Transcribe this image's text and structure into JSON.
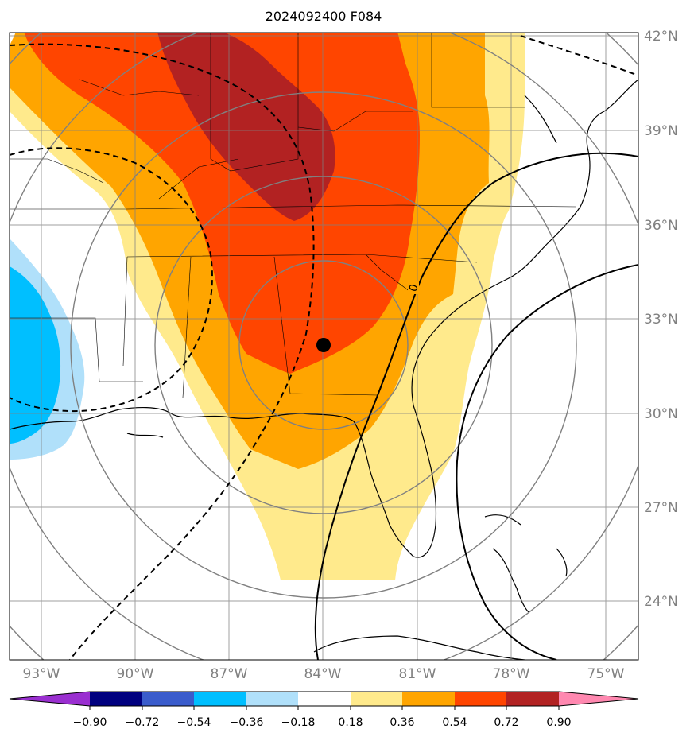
{
  "title": "2024092400 F084",
  "map": {
    "lat_labels": [
      "42°N",
      "39°N",
      "36°N",
      "33°N",
      "30°N",
      "27°N",
      "24°N"
    ],
    "lon_labels": [
      "93°W",
      "90°W",
      "87°W",
      "84°W",
      "81°W",
      "78°W",
      "75°W"
    ],
    "center_marker": {
      "lat": 32.2,
      "lon": -84.0
    },
    "contour_label": "0"
  },
  "colorbar": {
    "labels": [
      "−0.90",
      "−0.72",
      "−0.54",
      "−0.36",
      "−0.18",
      "0.18",
      "0.36",
      "0.54",
      "0.72",
      "0.90"
    ],
    "colors": [
      "#9a2fd0",
      "#00007f",
      "#3a5ccc",
      "#00bfff",
      "#b0e0fa",
      "#ffffff",
      "#ffea8c",
      "#ffa500",
      "#ff4500",
      "#b22222",
      "#ff88b0"
    ]
  },
  "colors": {
    "shade_light_yellow": "#ffea8c",
    "shade_orange": "#ffa500",
    "shade_red_orange": "#ff4500",
    "shade_dark_red": "#b22222",
    "shade_light_blue": "#b0e0fa",
    "shade_blue": "#00bfff",
    "grid": "#808080"
  }
}
